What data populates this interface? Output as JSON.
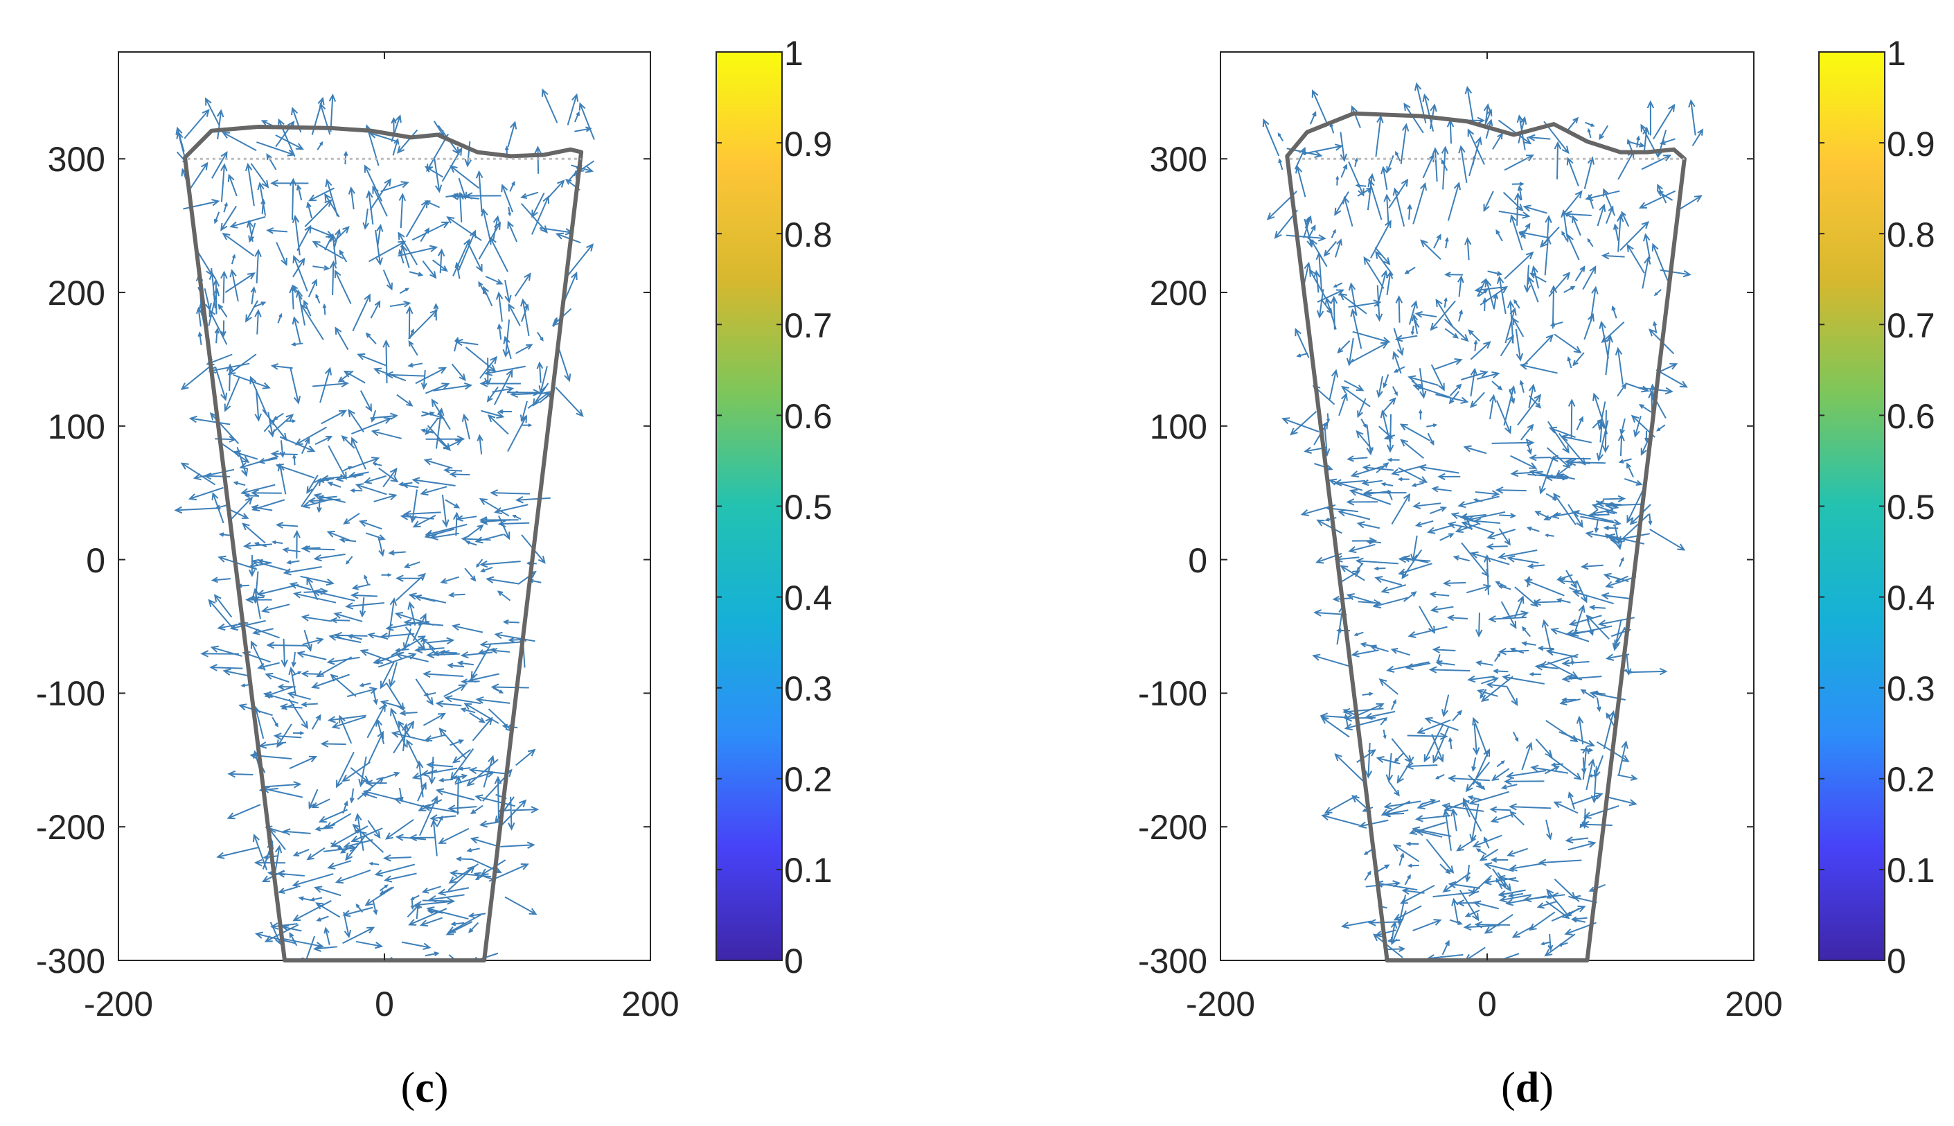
{
  "arrow_color": "#3d7fb8",
  "outline_color": "#666666",
  "colorbar": {
    "ticks": [
      "0",
      "0.1",
      "0.2",
      "0.3",
      "0.4",
      "0.5",
      "0.6",
      "0.7",
      "0.8",
      "0.9",
      "1"
    ],
    "colormap": [
      "#3e26a8",
      "#4743f8",
      "#2d8ef9",
      "#16b0d7",
      "#23c2b1",
      "#7dc65a",
      "#d7b82e",
      "#fec637",
      "#f9fb0e"
    ]
  },
  "chart_data": [
    {
      "type": "quiver",
      "panel": "(c)",
      "panel_letter": "c",
      "xlim": [
        -200,
        200
      ],
      "ylim": [
        -300,
        380
      ],
      "x_ticks": [
        "-200",
        "0",
        "200"
      ],
      "y_ticks": [
        "-300",
        "-200",
        "-100",
        "0",
        "100",
        "200",
        "300"
      ],
      "outline": [
        [
          -75,
          -300
        ],
        [
          75,
          -300
        ],
        [
          148,
          305
        ],
        [
          140,
          307
        ],
        [
          120,
          303
        ],
        [
          95,
          302
        ],
        [
          70,
          305
        ],
        [
          40,
          318
        ],
        [
          20,
          316
        ],
        [
          -10,
          321
        ],
        [
          -40,
          323
        ],
        [
          -95,
          324
        ],
        [
          -130,
          321
        ],
        [
          -150,
          301
        ]
      ],
      "seed": 7,
      "arrow_count": 720
    },
    {
      "type": "quiver",
      "panel": "(d)",
      "panel_letter": "d",
      "xlim": [
        -200,
        200
      ],
      "ylim": [
        -300,
        380
      ],
      "x_ticks": [
        "-200",
        "0",
        "200"
      ],
      "y_ticks": [
        "-300",
        "-200",
        "-100",
        "0",
        "100",
        "200",
        "300"
      ],
      "outline": [
        [
          -75,
          -300
        ],
        [
          75,
          -300
        ],
        [
          148,
          300
        ],
        [
          140,
          307
        ],
        [
          120,
          305
        ],
        [
          100,
          305
        ],
        [
          75,
          313
        ],
        [
          50,
          326
        ],
        [
          20,
          318
        ],
        [
          -15,
          328
        ],
        [
          -50,
          332
        ],
        [
          -100,
          334
        ],
        [
          -135,
          320
        ],
        [
          -150,
          302
        ]
      ],
      "seed": 13,
      "arrow_count": 720
    }
  ]
}
